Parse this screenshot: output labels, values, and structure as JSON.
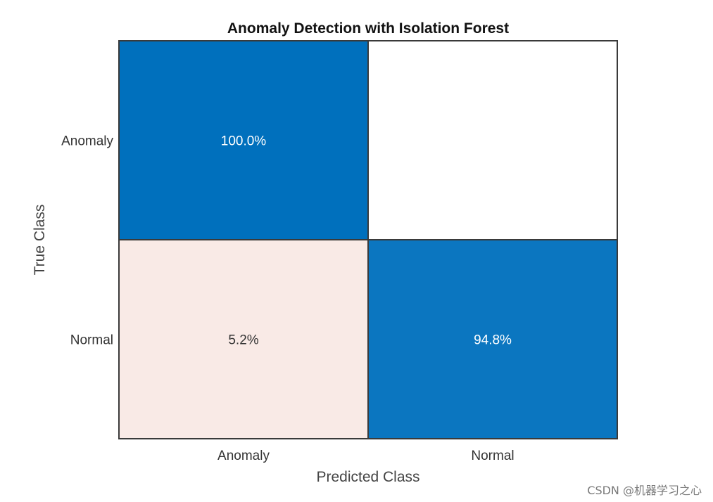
{
  "chart_data": {
    "type": "heatmap",
    "title": "Anomaly Detection with Isolation Forest",
    "xlabel": "Predicted Class",
    "ylabel": "True Class",
    "x_categories": [
      "Anomaly",
      "Normal"
    ],
    "y_categories": [
      "Anomaly",
      "Normal"
    ],
    "cells": [
      {
        "true": "Anomaly",
        "predicted": "Anomaly",
        "value": 100.0,
        "label": "100.0%"
      },
      {
        "true": "Anomaly",
        "predicted": "Normal",
        "value": 0.0,
        "label": ""
      },
      {
        "true": "Normal",
        "predicted": "Anomaly",
        "value": 5.2,
        "label": "5.2%"
      },
      {
        "true": "Normal",
        "predicted": "Normal",
        "value": 94.8,
        "label": "94.8%"
      }
    ],
    "colors": {
      "high": "#0070BD",
      "high_alt": "#0B76C0",
      "low": "#F9EAE6",
      "none": "#FFFFFF",
      "grid": "#3A3A3A"
    }
  },
  "watermark": "CSDN @机器学习之心"
}
